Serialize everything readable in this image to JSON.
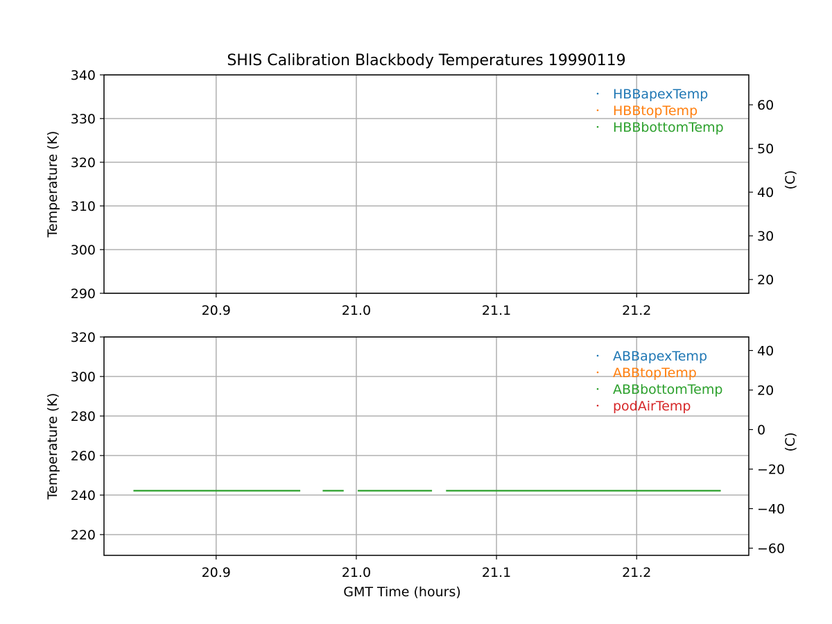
{
  "figure": {
    "title": "SHIS Calibration Blackbody Temperatures 19990119"
  },
  "chart_data": [
    {
      "type": "scatter",
      "xlabel": "",
      "ylabel": "Temperature (K)",
      "ylabel_right": "(C)",
      "xlim": [
        20.82,
        21.28
      ],
      "ylim": [
        290,
        340
      ],
      "ylim_right_c": [
        16.85,
        66.85
      ],
      "xticks": [
        "20.9",
        "21.0",
        "21.1",
        "21.2"
      ],
      "yticks": [
        "290",
        "300",
        "310",
        "320",
        "330",
        "340"
      ],
      "yticks_right": [
        "20",
        "30",
        "40",
        "50",
        "60"
      ],
      "grid": true,
      "legend_position": "top-right",
      "series": [
        {
          "name": "HBBapexTemp",
          "color": "#1f77b4",
          "segments": []
        },
        {
          "name": "HBBtopTemp",
          "color": "#ff7f0e",
          "segments": []
        },
        {
          "name": "HBBbottomTemp",
          "color": "#2ca02c",
          "segments": []
        }
      ]
    },
    {
      "type": "scatter",
      "xlabel": "GMT Time (hours)",
      "ylabel": "Temperature (K)",
      "ylabel_right": "(C)",
      "xlim": [
        20.82,
        21.28
      ],
      "ylim": [
        209.5,
        320
      ],
      "ylim_right_c": [
        -63.65,
        46.85
      ],
      "xticks": [
        "20.9",
        "21.0",
        "21.1",
        "21.2"
      ],
      "yticks": [
        "220",
        "240",
        "260",
        "280",
        "300",
        "320"
      ],
      "yticks_right": [
        "−60",
        "−40",
        "−20",
        "0",
        "20",
        "40"
      ],
      "grid": true,
      "legend_position": "top-right",
      "series": [
        {
          "name": "ABBapexTemp",
          "color": "#1f77b4",
          "segments": []
        },
        {
          "name": "ABBtopTemp",
          "color": "#ff7f0e",
          "segments": []
        },
        {
          "name": "ABBbottomTemp",
          "color": "#2ca02c",
          "segments": [
            {
              "x_start": 20.841,
              "x_end": 20.96,
              "y": 242.2
            },
            {
              "x_start": 20.976,
              "x_end": 20.991,
              "y": 242.2
            },
            {
              "x_start": 21.001,
              "x_end": 21.054,
              "y": 242.2
            },
            {
              "x_start": 21.064,
              "x_end": 21.26,
              "y": 242.2
            }
          ]
        },
        {
          "name": "podAirTemp",
          "color": "#d62728",
          "segments": []
        }
      ]
    }
  ]
}
